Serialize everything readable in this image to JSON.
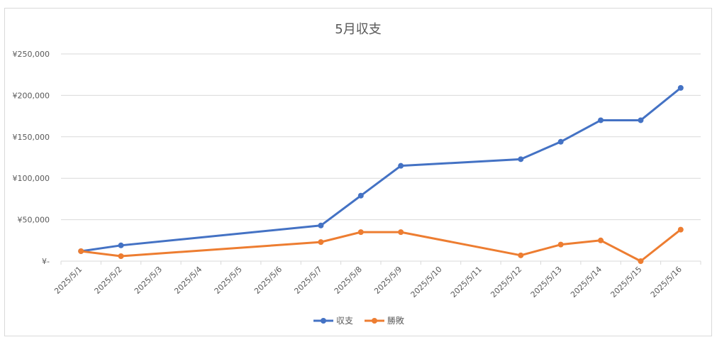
{
  "chart_data": {
    "type": "line",
    "title": "5月収支",
    "xlabel": "",
    "ylabel": "",
    "categories": [
      "2025/5/1",
      "2025/5/2",
      "2025/5/3",
      "2025/5/4",
      "2025/5/5",
      "2025/5/6",
      "2025/5/7",
      "2025/5/8",
      "2025/5/9",
      "2025/5/10",
      "2025/5/11",
      "2025/5/12",
      "2025/5/13",
      "2025/5/14",
      "2025/5/15",
      "2025/5/16"
    ],
    "y_ticks": [
      "¥-",
      "¥50,000",
      "¥100,000",
      "¥150,000",
      "¥200,000",
      "¥250,000"
    ],
    "ylim": [
      0,
      250000
    ],
    "grid": true,
    "legend_position": "bottom",
    "series": [
      {
        "name": "収支",
        "color": "#4472c4",
        "points": [
          {
            "x": "2025/5/1",
            "y": 12000
          },
          {
            "x": "2025/5/2",
            "y": 19000
          },
          {
            "x": "2025/5/7",
            "y": 43000
          },
          {
            "x": "2025/5/8",
            "y": 79000
          },
          {
            "x": "2025/5/9",
            "y": 115000
          },
          {
            "x": "2025/5/12",
            "y": 123000
          },
          {
            "x": "2025/5/13",
            "y": 144000
          },
          {
            "x": "2025/5/14",
            "y": 170000
          },
          {
            "x": "2025/5/15",
            "y": 170000
          },
          {
            "x": "2025/5/16",
            "y": 209000
          }
        ]
      },
      {
        "name": "勝敗",
        "color": "#ed7d31",
        "points": [
          {
            "x": "2025/5/1",
            "y": 12000
          },
          {
            "x": "2025/5/2",
            "y": 6000
          },
          {
            "x": "2025/5/7",
            "y": 23000
          },
          {
            "x": "2025/5/8",
            "y": 35000
          },
          {
            "x": "2025/5/9",
            "y": 35000
          },
          {
            "x": "2025/5/12",
            "y": 7000
          },
          {
            "x": "2025/5/13",
            "y": 20000
          },
          {
            "x": "2025/5/14",
            "y": 25000
          },
          {
            "x": "2025/5/15",
            "y": 0
          },
          {
            "x": "2025/5/16",
            "y": 38000
          }
        ]
      }
    ]
  }
}
